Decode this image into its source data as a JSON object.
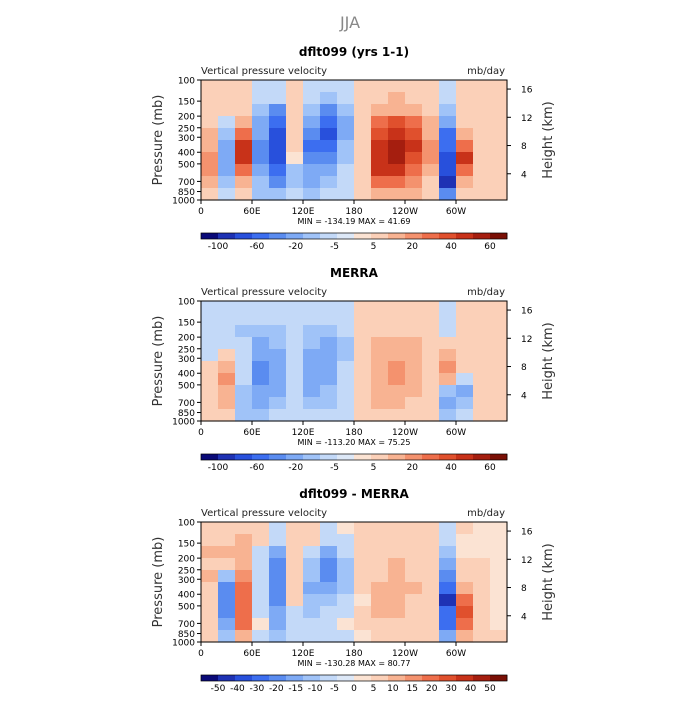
{
  "figure_title": "JJA",
  "palettes": {
    "full": [
      "#0a0a78",
      "#1e32b4",
      "#2850dc",
      "#3c6ef0",
      "#5a8cf0",
      "#7eaaf5",
      "#a0c3f8",
      "#c3d9f8",
      "#dde8f7",
      "#fbe3d3",
      "#fbd0b8",
      "#f8b392",
      "#f4926e",
      "#ee6e4b",
      "#e0502d",
      "#c83219",
      "#a51e0f",
      "#7a0f05"
    ],
    "diff": [
      "#0a0a78",
      "#1e32b4",
      "#2850dc",
      "#3c6ef0",
      "#5a8cf0",
      "#7eaaf5",
      "#a0c3f8",
      "#c3d9f8",
      "#dde8f7",
      "#fbe3d3",
      "#fbd0b8",
      "#f8b392",
      "#f4926e",
      "#ee6e4b",
      "#e0502d",
      "#c83219",
      "#a51e0f",
      "#7a0f05"
    ]
  },
  "chart_data": [
    {
      "type": "heatmap",
      "title": "dflt099 (yrs 1-1)",
      "subtitle_left": "Vertical pressure velocity",
      "subtitle_right": "mb/day",
      "ylabel": "Pressure (mb)",
      "ylabel_right": "Height (km)",
      "y_ticks": [
        "100",
        "150",
        "200",
        "250",
        "300",
        "400",
        "500",
        "700",
        "850",
        "1000"
      ],
      "y_ticks_right": [
        "16",
        "12",
        "8",
        "4"
      ],
      "x_ticks": [
        "0",
        "60E",
        "120E",
        "180",
        "120W",
        "60W"
      ],
      "stats": "MIN = -134.19   MAX =  41.69",
      "colorbar_labels": [
        "-100",
        "-60",
        "-20",
        "-5",
        "5",
        "20",
        "40",
        "60"
      ],
      "palette": "full",
      "x": [
        0,
        20,
        40,
        60,
        80,
        100,
        120,
        140,
        160,
        180,
        200,
        220,
        240,
        260,
        280,
        300,
        320,
        340
      ],
      "y": [
        100,
        150,
        200,
        250,
        300,
        400,
        500,
        700,
        850,
        1000
      ],
      "z": [
        [
          2,
          3,
          2,
          -2,
          -4,
          1,
          -2,
          -5,
          -3,
          3,
          3,
          4,
          3,
          3,
          -2,
          2,
          1,
          1
        ],
        [
          3,
          3,
          2,
          -5,
          -15,
          2,
          -5,
          -20,
          -10,
          3,
          5,
          6,
          5,
          4,
          -8,
          2,
          2,
          1
        ],
        [
          5,
          2,
          3,
          -20,
          -60,
          5,
          -30,
          -60,
          -30,
          5,
          10,
          10,
          8,
          5,
          -25,
          3,
          3,
          2
        ],
        [
          5,
          -5,
          10,
          -40,
          -80,
          5,
          -50,
          -80,
          -40,
          5,
          20,
          25,
          20,
          10,
          -50,
          5,
          4,
          2
        ],
        [
          10,
          -20,
          20,
          -50,
          -90,
          5,
          -60,
          -90,
          -40,
          3,
          25,
          30,
          25,
          10,
          -70,
          10,
          5,
          2
        ],
        [
          10,
          -40,
          30,
          -60,
          -100,
          5,
          -70,
          -80,
          -30,
          3,
          30,
          35,
          30,
          15,
          -80,
          20,
          5,
          2
        ],
        [
          12,
          -50,
          30,
          -60,
          -90,
          0,
          -60,
          -60,
          -20,
          2,
          30,
          35,
          25,
          15,
          -90,
          30,
          5,
          2
        ],
        [
          15,
          -40,
          20,
          -50,
          -80,
          -20,
          -50,
          -40,
          -10,
          5,
          30,
          30,
          20,
          10,
          -100,
          20,
          5,
          2
        ],
        [
          10,
          -30,
          10,
          -30,
          -60,
          -20,
          -40,
          -20,
          -5,
          5,
          20,
          20,
          15,
          5,
          -110,
          10,
          5,
          2
        ],
        [
          5,
          -15,
          5,
          -20,
          -30,
          -10,
          -20,
          -10,
          -3,
          2,
          10,
          10,
          8,
          3,
          -60,
          5,
          3,
          2
        ]
      ],
      "zmin": -134.19,
      "zmax": 41.69
    },
    {
      "type": "heatmap",
      "title": "MERRA",
      "subtitle_left": "Vertical pressure velocity",
      "subtitle_right": "mb/day",
      "ylabel": "Pressure (mb)",
      "ylabel_right": "Height (km)",
      "y_ticks": [
        "100",
        "150",
        "200",
        "250",
        "300",
        "400",
        "500",
        "700",
        "850",
        "1000"
      ],
      "y_ticks_right": [
        "16",
        "12",
        "8",
        "4"
      ],
      "x_ticks": [
        "0",
        "60E",
        "120E",
        "180",
        "120W",
        "60W"
      ],
      "stats": "MIN = -113.20   MAX =  75.25",
      "colorbar_labels": [
        "-100",
        "-60",
        "-20",
        "-5",
        "5",
        "20",
        "40",
        "60"
      ],
      "palette": "full",
      "x": [
        0,
        20,
        40,
        60,
        80,
        100,
        120,
        140,
        160,
        180,
        200,
        220,
        240,
        260,
        280,
        300,
        320,
        340
      ],
      "y": [
        100,
        150,
        200,
        250,
        300,
        400,
        500,
        700,
        850,
        1000
      ],
      "z": [
        [
          -3,
          -4,
          -4,
          -4,
          -3,
          -2,
          -3,
          -4,
          -3,
          1,
          1,
          2,
          2,
          1,
          -1,
          1,
          1,
          1
        ],
        [
          -5,
          -8,
          -10,
          -10,
          -8,
          -3,
          -8,
          -10,
          -8,
          2,
          3,
          4,
          4,
          3,
          -2,
          2,
          2,
          1
        ],
        [
          -8,
          -10,
          -15,
          -20,
          -15,
          -5,
          -15,
          -20,
          -12,
          3,
          6,
          7,
          6,
          4,
          -3,
          3,
          3,
          2
        ],
        [
          -5,
          -5,
          -10,
          -30,
          -25,
          -5,
          -25,
          -30,
          -15,
          3,
          10,
          12,
          10,
          5,
          5,
          4,
          3,
          2
        ],
        [
          -3,
          5,
          -10,
          -40,
          -35,
          -5,
          -30,
          -35,
          -15,
          3,
          15,
          18,
          15,
          7,
          10,
          5,
          4,
          2
        ],
        [
          2,
          15,
          -5,
          -45,
          -40,
          -5,
          -35,
          -35,
          -12,
          3,
          18,
          22,
          18,
          8,
          20,
          5,
          4,
          2
        ],
        [
          3,
          20,
          -10,
          -45,
          -40,
          -8,
          -35,
          -30,
          -10,
          3,
          18,
          20,
          15,
          7,
          15,
          -10,
          4,
          2
        ],
        [
          5,
          15,
          -20,
          -40,
          -35,
          -10,
          -30,
          -25,
          -8,
          4,
          15,
          15,
          12,
          5,
          -20,
          -30,
          4,
          2
        ],
        [
          3,
          10,
          -25,
          -30,
          -25,
          -10,
          -25,
          -15,
          -5,
          4,
          10,
          10,
          8,
          3,
          -30,
          -25,
          3,
          2
        ],
        [
          2,
          5,
          -15,
          -15,
          -10,
          -5,
          -10,
          -5,
          -2,
          2,
          5,
          5,
          4,
          2,
          -20,
          -10,
          2,
          1
        ]
      ],
      "zmin": -113.2,
      "zmax": 75.25
    },
    {
      "type": "heatmap",
      "title": "dflt099 - MERRA",
      "subtitle_left": "Vertical pressure velocity",
      "subtitle_right": "mb/day",
      "ylabel": "Pressure (mb)",
      "ylabel_right": "Height (km)",
      "y_ticks": [
        "100",
        "150",
        "200",
        "250",
        "300",
        "400",
        "500",
        "700",
        "850",
        "1000"
      ],
      "y_ticks_right": [
        "16",
        "12",
        "8",
        "4"
      ],
      "x_ticks": [
        "0",
        "60E",
        "120E",
        "180",
        "120W",
        "60W"
      ],
      "stats": "MIN = -130.28   MAX =  80.77",
      "colorbar_labels": [
        "-50",
        "-40",
        "-30",
        "-20",
        "-15",
        "-10",
        "-5",
        "0",
        "5",
        "10",
        "15",
        "20",
        "30",
        "40",
        "50"
      ],
      "palette": "diff",
      "x": [
        0,
        20,
        40,
        60,
        80,
        100,
        120,
        140,
        160,
        180,
        200,
        220,
        240,
        260,
        280,
        300,
        320,
        340
      ],
      "y": [
        100,
        150,
        200,
        250,
        300,
        400,
        500,
        700,
        850,
        1000
      ],
      "z": [
        [
          5,
          6,
          5,
          2,
          -2,
          3,
          2,
          -2,
          0,
          2,
          2,
          2,
          1,
          2,
          -1,
          1,
          0,
          0
        ],
        [
          8,
          10,
          12,
          5,
          -8,
          5,
          3,
          -10,
          -2,
          1,
          2,
          2,
          1,
          1,
          -5,
          0,
          0,
          0
        ],
        [
          12,
          12,
          18,
          -5,
          -40,
          10,
          -15,
          -40,
          -15,
          2,
          4,
          3,
          2,
          1,
          -20,
          0,
          0,
          0
        ],
        [
          10,
          5,
          20,
          -10,
          -50,
          10,
          -25,
          -50,
          -25,
          2,
          10,
          12,
          10,
          5,
          -40,
          2,
          1,
          0
        ],
        [
          13,
          -20,
          30,
          -10,
          -55,
          10,
          -30,
          -55,
          -25,
          1,
          10,
          12,
          10,
          3,
          -60,
          5,
          1,
          0
        ],
        [
          8,
          -50,
          35,
          -15,
          -60,
          10,
          -35,
          -45,
          -18,
          1,
          12,
          13,
          12,
          7,
          -80,
          15,
          1,
          0
        ],
        [
          9,
          -60,
          40,
          -15,
          -50,
          8,
          -25,
          -30,
          -10,
          0,
          12,
          15,
          10,
          8,
          -105,
          35,
          1,
          0
        ],
        [
          10,
          -55,
          40,
          -10,
          -45,
          -10,
          -20,
          -15,
          -2,
          1,
          15,
          15,
          8,
          5,
          -80,
          50,
          1,
          0
        ],
        [
          7,
          -40,
          35,
          0,
          -35,
          -10,
          -15,
          -5,
          0,
          1,
          10,
          10,
          7,
          2,
          -80,
          35,
          2,
          0
        ],
        [
          3,
          -20,
          20,
          -5,
          -20,
          -5,
          -10,
          -5,
          -1,
          0,
          5,
          5,
          4,
          1,
          -40,
          15,
          1,
          1
        ]
      ],
      "zmin": -130.28,
      "zmax": 80.77
    }
  ]
}
